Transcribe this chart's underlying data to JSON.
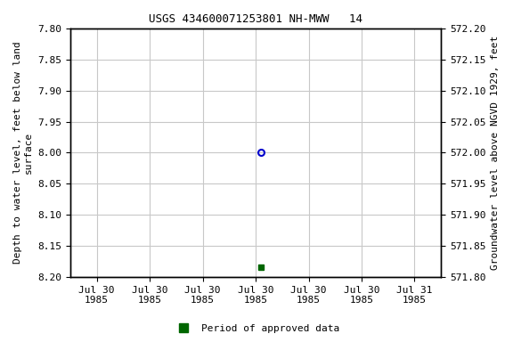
{
  "title": "USGS 434600071253801 NH-MWW   14",
  "left_ylabel": "Depth to water level, feet below land\nsurface",
  "right_ylabel": "Groundwater level above NGVD 1929, feet",
  "ylim_left": [
    8.2,
    7.8
  ],
  "ylim_right": [
    571.8,
    572.2
  ],
  "y_ticks_left": [
    7.8,
    7.85,
    7.9,
    7.95,
    8.0,
    8.05,
    8.1,
    8.15,
    8.2
  ],
  "y_ticks_right": [
    572.2,
    572.15,
    572.1,
    572.05,
    572.0,
    571.95,
    571.9,
    571.85,
    571.8
  ],
  "y_ticks_right_pos": [
    7.8,
    7.85,
    7.9,
    7.95,
    8.0,
    8.05,
    8.1,
    8.15,
    8.2
  ],
  "x_tick_labels": [
    "Jul 30\n1985",
    "Jul 30\n1985",
    "Jul 30\n1985",
    "Jul 30\n1985",
    "Jul 30\n1985",
    "Jul 30\n1985",
    "Jul 31\n1985"
  ],
  "x_tick_positions": [
    0,
    1,
    2,
    3,
    4,
    5,
    6
  ],
  "blue_point_x": 3.1,
  "blue_point_y": 8.0,
  "green_point_x": 3.1,
  "green_point_y": 8.185,
  "blue_color": "#0000cc",
  "green_color": "#006600",
  "legend_label": "Period of approved data",
  "background_color": "#ffffff",
  "grid_color": "#c8c8c8",
  "title_fontsize": 9,
  "tick_fontsize": 8,
  "label_fontsize": 8
}
